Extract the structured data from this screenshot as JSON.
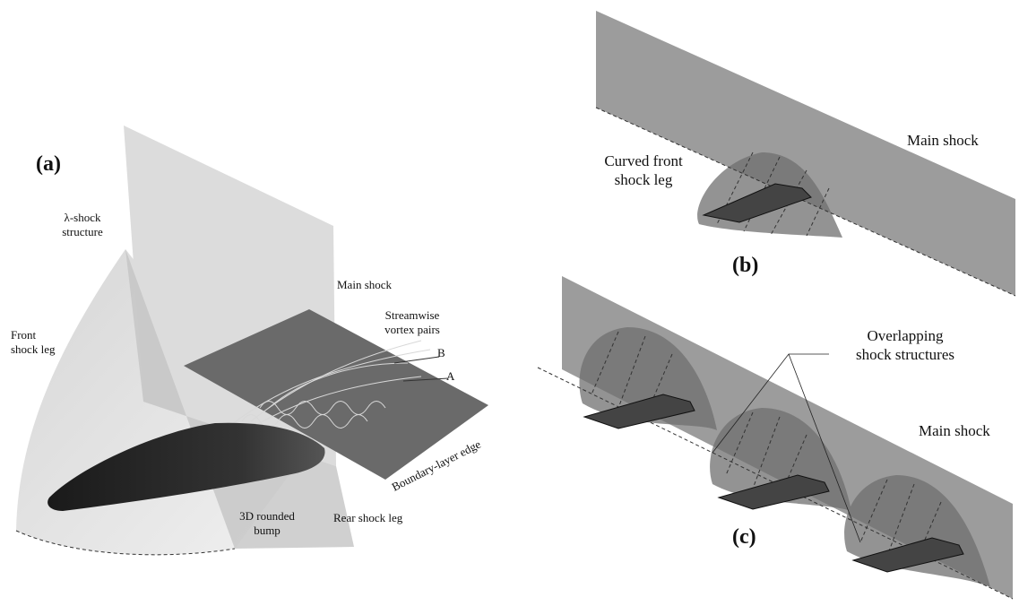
{
  "panel_a": {
    "label": "(a)",
    "annotations": [
      {
        "lines": [
          "λ-shock",
          "structure"
        ]
      },
      {
        "lines": [
          "Main shock"
        ]
      },
      {
        "lines": [
          "Front",
          "shock leg"
        ]
      },
      {
        "lines": [
          "Streamwise",
          "vortex pairs"
        ]
      },
      {
        "lines": [
          "B"
        ]
      },
      {
        "lines": [
          "A"
        ]
      },
      {
        "lines": [
          "Boundary-layer edge"
        ]
      },
      {
        "lines": [
          "3D rounded",
          "bump"
        ]
      },
      {
        "lines": [
          "Rear shock leg"
        ]
      }
    ]
  },
  "panel_b": {
    "label": "(b)",
    "annotations": [
      {
        "lines": [
          "Curved front",
          "shock leg"
        ]
      },
      {
        "lines": [
          "Main shock"
        ]
      }
    ]
  },
  "panel_c": {
    "label": "(c)",
    "annotations": [
      {
        "lines": [
          "Overlapping",
          "shock structures"
        ]
      },
      {
        "lines": [
          "Main shock"
        ]
      }
    ]
  }
}
